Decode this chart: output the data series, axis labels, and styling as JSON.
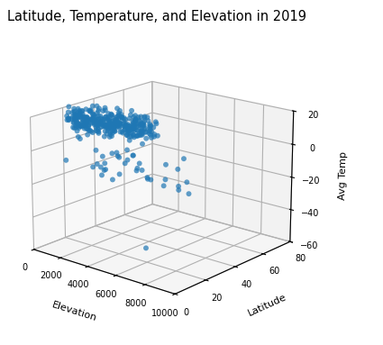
{
  "title": "Latitude, Temperature, and Elevation in 2019",
  "xlabel": "Elevation",
  "ylabel": "Latitude",
  "zlabel": "Avg Temp",
  "xlim": [
    0,
    10000
  ],
  "ylim": [
    0,
    80
  ],
  "zlim": [
    -60,
    20
  ],
  "xticks": [
    0,
    2000,
    4000,
    6000,
    8000,
    10000
  ],
  "yticks": [
    0,
    20,
    40,
    60,
    80
  ],
  "zticks": [
    -60,
    -40,
    -20,
    0,
    20
  ],
  "dot_color": "#1f77b4",
  "dot_alpha": 0.7,
  "dot_size": 18,
  "figsize": [
    4.25,
    3.83
  ],
  "dpi": 100,
  "view_elev": 18,
  "view_azim": -50
}
